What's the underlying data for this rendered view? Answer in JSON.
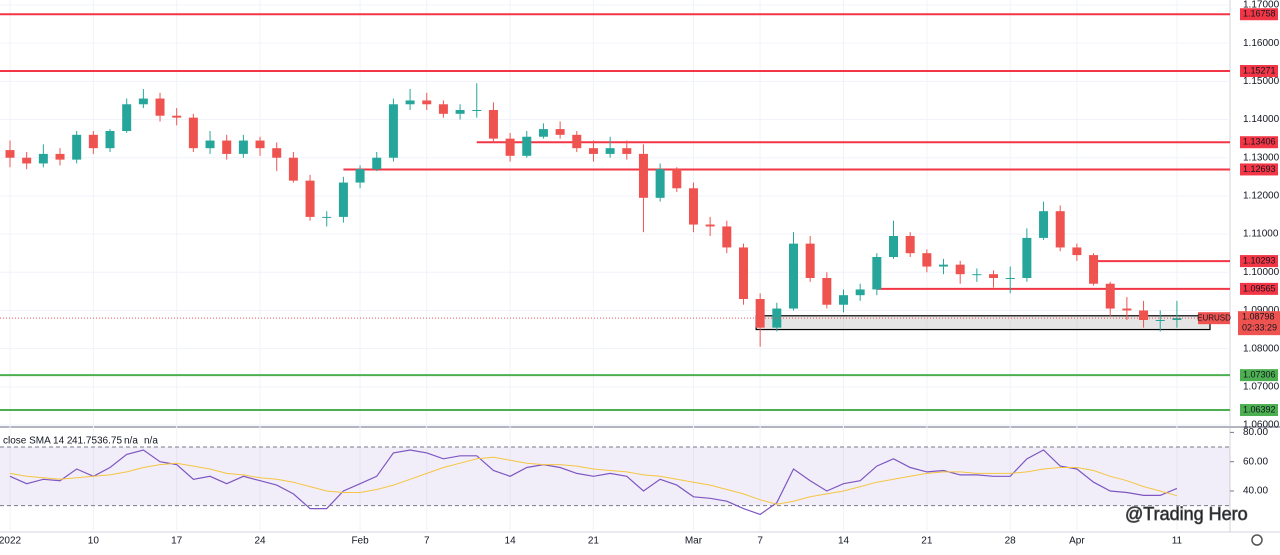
{
  "chart_data": {
    "type": "candlestick",
    "symbol": "EURUSD",
    "countdown": "02:33:29",
    "watermark": "@Trading Hero",
    "categories": [
      "2022",
      null,
      null,
      null,
      null,
      "10",
      null,
      null,
      null,
      null,
      "17",
      null,
      null,
      null,
      null,
      "24",
      null,
      null,
      null,
      null,
      null,
      "Feb",
      null,
      null,
      null,
      "7",
      null,
      null,
      null,
      null,
      "14",
      null,
      null,
      null,
      null,
      "21",
      null,
      null,
      null,
      null,
      null,
      "Mar",
      null,
      null,
      null,
      "7",
      null,
      null,
      null,
      null,
      "14",
      null,
      null,
      null,
      null,
      "21",
      null,
      null,
      null,
      null,
      "28",
      null,
      null,
      null,
      "Apr",
      null,
      null,
      null,
      null,
      null,
      "11"
    ],
    "open": [
      1.132,
      1.13,
      1.1285,
      1.131,
      1.1295,
      1.136,
      1.1325,
      1.137,
      1.144,
      1.1455,
      1.141,
      1.1405,
      1.1325,
      1.1345,
      1.131,
      1.1345,
      1.1325,
      1.13,
      1.124,
      1.1145,
      1.1145,
      1.1235,
      1.127,
      1.13,
      1.144,
      1.145,
      1.144,
      1.1415,
      1.1425,
      1.1425,
      1.135,
      1.1305,
      1.1355,
      1.1375,
      1.136,
      1.1325,
      1.131,
      1.1325,
      1.131,
      1.1195,
      1.127,
      1.122,
      1.1125,
      1.112,
      1.1065,
      1.093,
      1.0855,
      1.0905,
      1.1075,
      1.0985,
      1.0915,
      1.094,
      1.0955,
      1.104,
      1.1095,
      1.105,
      1.1015,
      1.102,
      1.0995,
      1.0995,
      1.0985,
      1.0985,
      1.109,
      1.116,
      1.1065,
      1.1045,
      1.097,
      1.0905,
      1.09,
      1.0875,
      1.0875
    ],
    "high": [
      1.1345,
      1.1315,
      1.1335,
      1.1325,
      1.137,
      1.137,
      1.1375,
      1.1455,
      1.148,
      1.147,
      1.143,
      1.1415,
      1.137,
      1.136,
      1.136,
      1.1355,
      1.134,
      1.1315,
      1.1255,
      1.116,
      1.125,
      1.128,
      1.1315,
      1.1455,
      1.148,
      1.147,
      1.145,
      1.144,
      1.1495,
      1.1445,
      1.1365,
      1.137,
      1.139,
      1.1395,
      1.137,
      1.1345,
      1.1355,
      1.1345,
      1.1335,
      1.1285,
      1.1275,
      1.1235,
      1.1145,
      1.1135,
      1.1075,
      1.0945,
      1.092,
      1.1105,
      1.1095,
      1.1,
      1.0955,
      1.097,
      1.105,
      1.1135,
      1.1105,
      1.106,
      1.1035,
      1.103,
      1.101,
      1.1005,
      1.1015,
      1.1115,
      1.1185,
      1.1175,
      1.1075,
      1.105,
      1.0975,
      1.0935,
      1.0925,
      1.09,
      1.0925
    ],
    "low": [
      1.1275,
      1.127,
      1.1275,
      1.128,
      1.1285,
      1.131,
      1.1315,
      1.1365,
      1.143,
      1.1395,
      1.1385,
      1.1315,
      1.131,
      1.1295,
      1.13,
      1.1305,
      1.1265,
      1.1235,
      1.1135,
      1.112,
      1.113,
      1.122,
      1.1265,
      1.129,
      1.1425,
      1.1425,
      1.1405,
      1.14,
      1.1405,
      1.134,
      1.129,
      1.13,
      1.135,
      1.135,
      1.1315,
      1.129,
      1.13,
      1.1295,
      1.1105,
      1.1185,
      1.121,
      1.1105,
      1.1095,
      1.105,
      1.0915,
      1.0805,
      1.0845,
      1.09,
      1.0975,
      1.0905,
      1.0895,
      1.0925,
      1.094,
      1.1035,
      1.104,
      1.1,
      1.0995,
      1.097,
      1.0975,
      1.096,
      1.0945,
      1.0975,
      1.1085,
      1.1055,
      1.103,
      1.0965,
      1.0885,
      1.0875,
      1.0855,
      1.0845,
      1.0855
    ],
    "close": [
      1.13,
      1.1285,
      1.131,
      1.1295,
      1.136,
      1.1325,
      1.137,
      1.144,
      1.1455,
      1.141,
      1.1405,
      1.1325,
      1.1345,
      1.131,
      1.1345,
      1.1325,
      1.13,
      1.124,
      1.1145,
      1.1145,
      1.1235,
      1.127,
      1.13,
      1.144,
      1.145,
      1.144,
      1.1415,
      1.1425,
      1.1425,
      1.135,
      1.1305,
      1.1355,
      1.1375,
      1.136,
      1.1325,
      1.131,
      1.1325,
      1.131,
      1.1195,
      1.127,
      1.122,
      1.1125,
      1.112,
      1.1065,
      1.093,
      1.0855,
      1.0905,
      1.1075,
      1.0985,
      1.0915,
      1.094,
      1.0955,
      1.104,
      1.1095,
      1.105,
      1.1015,
      1.102,
      1.0995,
      1.0995,
      1.0985,
      1.0985,
      1.109,
      1.116,
      1.1065,
      1.1045,
      1.097,
      1.0905,
      1.09,
      1.0875,
      1.0875,
      1.08798
    ],
    "up_color": "#26a69a",
    "down_color": "#ef5350",
    "ylim": [
      1.06,
      1.17
    ],
    "yticks": [
      {
        "value": 1.17,
        "label": "1.17000"
      },
      {
        "value": 1.16,
        "label": "1.16000"
      },
      {
        "value": 1.15,
        "label": "1.15000"
      },
      {
        "value": 1.14,
        "label": "1.14000"
      },
      {
        "value": 1.13,
        "label": "1.13000"
      },
      {
        "value": 1.12,
        "label": "1.12000"
      },
      {
        "value": 1.11,
        "label": "1.11000"
      },
      {
        "value": 1.1,
        "label": "1.10000"
      },
      {
        "value": 1.09,
        "label": "1.09000"
      },
      {
        "value": 1.08,
        "label": "1.08000"
      },
      {
        "value": 1.07,
        "label": "1.07000"
      },
      {
        "value": 1.06,
        "label": "1.06000"
      }
    ],
    "grid": true,
    "levels": [
      {
        "value": 1.16758,
        "color": "#f23645"
      },
      {
        "value": 1.15271,
        "color": "#f23645"
      },
      {
        "value": 1.13406,
        "color": "#f23645",
        "from": 28
      },
      {
        "value": 1.12693,
        "color": "#f23645",
        "from": 20
      },
      {
        "value": 1.10293,
        "color": "#f23645",
        "from": 65
      },
      {
        "value": 1.09565,
        "color": "#f23645",
        "from": 52
      },
      {
        "value": 1.07306,
        "color": "#4caf50"
      },
      {
        "value": 1.06392,
        "color": "#4caf50"
      }
    ],
    "zone": {
      "from": 45,
      "top": 1.0886,
      "bottom": 1.085
    },
    "rsi": {
      "title": "close SMA 14 2",
      "na": [
        "n/a",
        "n/a"
      ],
      "ylim": [
        12,
        83
      ],
      "yticks": [
        {
          "value": 80,
          "label": "80.00"
        },
        {
          "value": 60,
          "label": "60.00"
        },
        {
          "value": 40,
          "label": "40.00"
        }
      ],
      "bands": [
        70,
        30
      ],
      "series": [
        {
          "name": "RSI",
          "color": "#7e57c2",
          "values": [
            50,
            45,
            48,
            47,
            55,
            50,
            56,
            65,
            68,
            60,
            58,
            48,
            50,
            45,
            50,
            47,
            44,
            38,
            28,
            28,
            40,
            45,
            50,
            66,
            68,
            66,
            62,
            64,
            64,
            54,
            50,
            56,
            58,
            56,
            52,
            50,
            52,
            50,
            40,
            48,
            44,
            36,
            35,
            33,
            28,
            24,
            32,
            55,
            47,
            40,
            45,
            47,
            57,
            62,
            56,
            53,
            54,
            51,
            51,
            50,
            50,
            62,
            68,
            57,
            55,
            46,
            40,
            39,
            37,
            37,
            41.75
          ]
        },
        {
          "name": "SMA",
          "color": "#f5c542",
          "values": [
            52,
            50,
            49,
            48,
            49,
            50,
            51,
            53,
            56,
            58,
            59,
            57,
            55,
            52,
            51,
            49,
            48,
            46,
            43,
            40,
            39,
            39,
            41,
            44,
            48,
            52,
            56,
            59,
            62,
            63,
            61,
            59,
            58,
            58,
            57,
            55,
            54,
            53,
            51,
            50,
            48,
            46,
            44,
            41,
            38,
            34,
            31,
            33,
            36,
            38,
            40,
            43,
            46,
            48,
            50,
            52,
            53,
            53,
            52,
            52,
            52,
            53,
            55,
            56,
            56,
            54,
            50,
            47,
            43,
            40,
            36.75
          ]
        }
      ]
    }
  }
}
